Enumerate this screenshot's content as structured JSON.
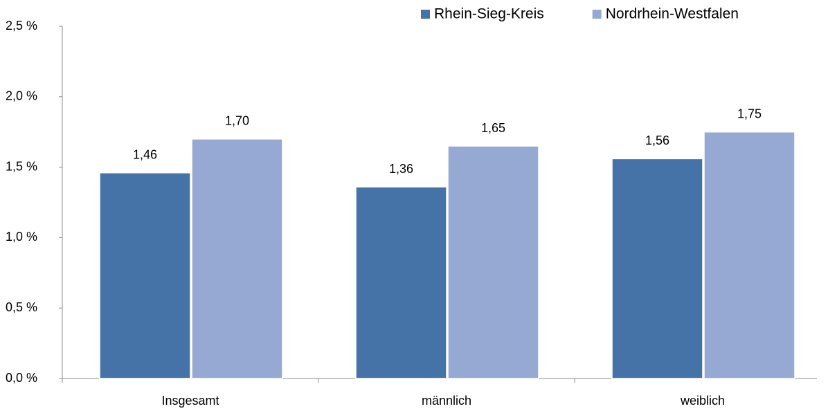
{
  "chart_data": {
    "type": "bar",
    "categories": [
      "Insgesamt",
      "männlich",
      "weiblich"
    ],
    "series": [
      {
        "name": "Rhein-Sieg-Kreis",
        "color": "#4673a7",
        "values": [
          1.46,
          1.36,
          1.56
        ],
        "value_labels": [
          "1,46",
          "1,36",
          "1,56"
        ]
      },
      {
        "name": "Nordrhein-Westfalen",
        "color": "#95a9d2",
        "values": [
          1.7,
          1.65,
          1.75
        ],
        "value_labels": [
          "1,70",
          "1,65",
          "1,75"
        ]
      }
    ],
    "ylim": [
      0,
      2.5
    ],
    "yticks": [
      {
        "value": 0,
        "label": "0,0 %"
      },
      {
        "value": 0.5,
        "label": "0,5 %"
      },
      {
        "value": 1.0,
        "label": "1,0 %"
      },
      {
        "value": 1.5,
        "label": "1,5 %"
      },
      {
        "value": 2.0,
        "label": "2,0 %"
      },
      {
        "value": 2.5,
        "label": "2,5 %"
      }
    ],
    "legend": "top-right"
  }
}
